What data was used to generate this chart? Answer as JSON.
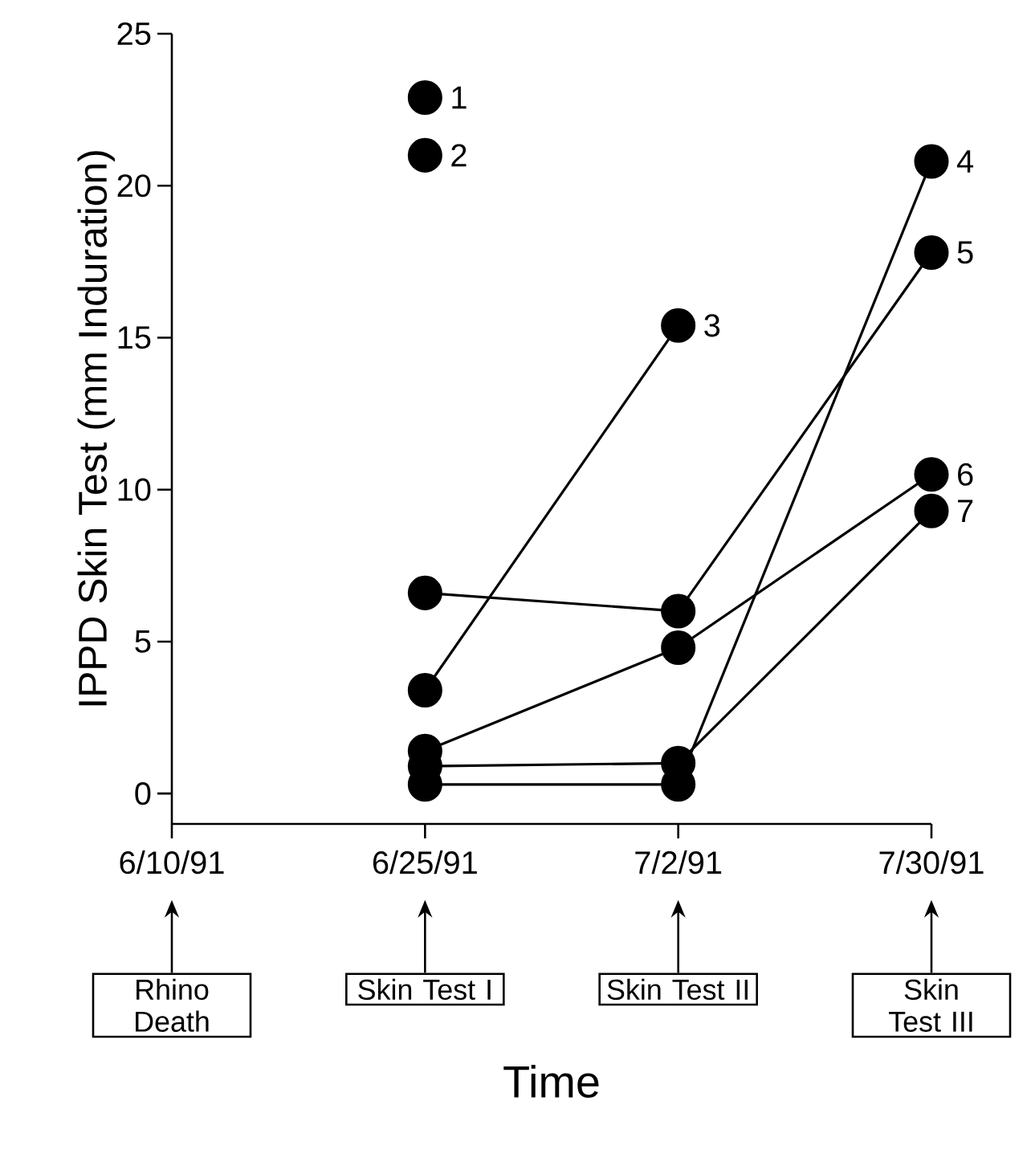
{
  "chart_data": {
    "type": "line",
    "xlabel": "Time",
    "ylabel": "IPPD Skin Test (mm Induration)",
    "categories": [
      "6/10/91",
      "6/25/91",
      "7/2/91",
      "7/30/91"
    ],
    "ylim": [
      -1,
      25
    ],
    "yticks": [
      0,
      5,
      10,
      15,
      20,
      25
    ],
    "marker": "circle",
    "line_style": "solid",
    "series": [
      {
        "name": "1",
        "color": "#000000",
        "values": [
          null,
          22.9,
          null,
          null
        ]
      },
      {
        "name": "2",
        "color": "#000000",
        "values": [
          null,
          21.0,
          null,
          null
        ]
      },
      {
        "name": "3",
        "color": "#000000",
        "values": [
          null,
          3.4,
          15.4,
          null
        ]
      },
      {
        "name": "4",
        "color": "#000000",
        "values": [
          null,
          0.3,
          0.3,
          20.8
        ]
      },
      {
        "name": "5",
        "color": "#000000",
        "values": [
          null,
          6.6,
          6.0,
          17.8
        ]
      },
      {
        "name": "6",
        "color": "#000000",
        "values": [
          null,
          1.4,
          4.8,
          10.5
        ]
      },
      {
        "name": "7",
        "color": "#000000",
        "values": [
          null,
          0.9,
          1.0,
          9.3
        ]
      }
    ],
    "annotations": [
      "Rhino Death",
      "Skin Test I",
      "Skin Test II",
      "Skin Test III"
    ]
  }
}
